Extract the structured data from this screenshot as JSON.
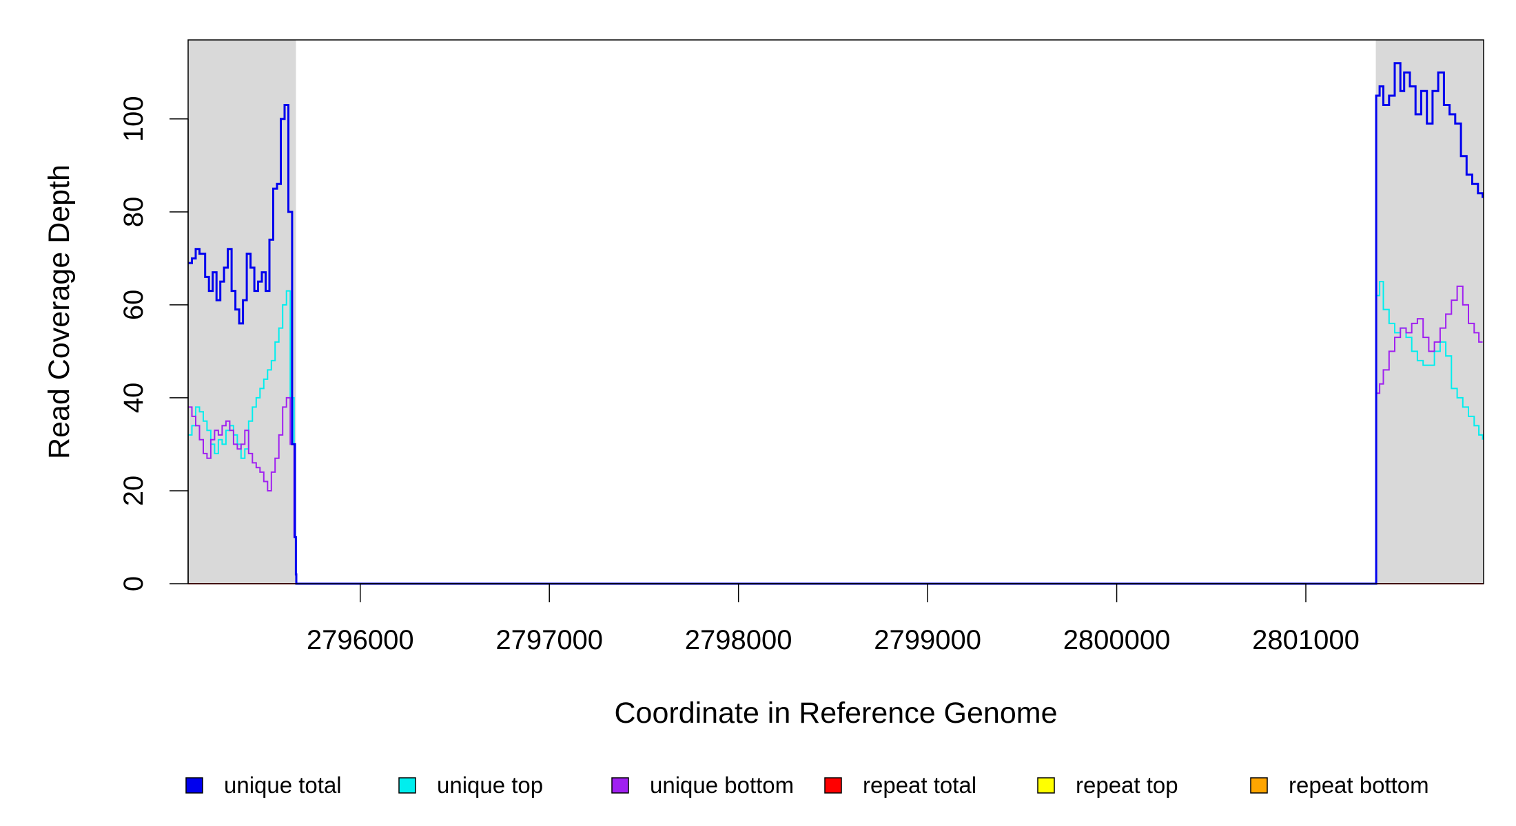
{
  "chart_data": {
    "type": "line",
    "title": "",
    "xlabel": "Coordinate in Reference Genome",
    "ylabel": "Read Coverage Depth",
    "xlim": [
      2795090,
      2801940
    ],
    "ylim": [
      0,
      117
    ],
    "x_ticks": [
      2796000,
      2797000,
      2798000,
      2799000,
      2800000,
      2801000
    ],
    "x_tick_labels": [
      "2796000",
      "2797000",
      "2798000",
      "2799000",
      "2800000",
      "2801000"
    ],
    "y_ticks": [
      0,
      20,
      40,
      60,
      80,
      100
    ],
    "y_tick_labels": [
      "0",
      "20",
      "40",
      "60",
      "80",
      "100"
    ],
    "shaded_regions": [
      {
        "from": 2795090,
        "to": 2795660,
        "color": "#d9d9d9"
      },
      {
        "from": 2801370,
        "to": 2801940,
        "color": "#d9d9d9"
      }
    ],
    "legend": {
      "placement": "bottom",
      "entries": [
        {
          "label": "unique total",
          "color": "#0000ee"
        },
        {
          "label": "unique top",
          "color": "#00eeee"
        },
        {
          "label": "unique bottom",
          "color": "#a020f0"
        },
        {
          "label": "repeat total",
          "color": "#ff0000"
        },
        {
          "label": "repeat top",
          "color": "#ffff00"
        },
        {
          "label": "repeat bottom",
          "color": "#ffa500"
        }
      ]
    },
    "series": [
      {
        "name": "unique total",
        "color": "#0000ee",
        "x": [
          2795090,
          2795110,
          2795130,
          2795150,
          2795180,
          2795200,
          2795220,
          2795240,
          2795260,
          2795280,
          2795300,
          2795320,
          2795340,
          2795360,
          2795380,
          2795400,
          2795420,
          2795440,
          2795460,
          2795480,
          2795500,
          2795520,
          2795540,
          2795560,
          2795580,
          2795600,
          2795620,
          2795640,
          2795655,
          2795660,
          2795662,
          2801370,
          2801372,
          2801390,
          2801410,
          2801440,
          2801470,
          2801500,
          2801520,
          2801550,
          2801580,
          2801610,
          2801640,
          2801670,
          2801700,
          2801730,
          2801760,
          2801790,
          2801820,
          2801850,
          2801880,
          2801910,
          2801935
        ],
        "y": [
          69,
          70,
          72,
          71,
          66,
          63,
          67,
          61,
          65,
          68,
          72,
          63,
          59,
          56,
          61,
          71,
          68,
          63,
          65,
          67,
          63,
          74,
          85,
          86,
          100,
          103,
          80,
          30,
          10,
          2,
          0,
          0,
          105,
          107,
          103,
          105,
          112,
          106,
          110,
          107,
          101,
          106,
          99,
          106,
          110,
          103,
          101,
          99,
          92,
          88,
          86,
          84,
          83
        ]
      },
      {
        "name": "unique top",
        "color": "#00eeee",
        "x": [
          2795090,
          2795110,
          2795130,
          2795150,
          2795170,
          2795190,
          2795210,
          2795230,
          2795250,
          2795270,
          2795290,
          2795310,
          2795330,
          2795350,
          2795370,
          2795390,
          2795410,
          2795430,
          2795450,
          2795470,
          2795490,
          2795510,
          2795530,
          2795550,
          2795570,
          2795590,
          2795610,
          2795630,
          2795650,
          2795660,
          2795662,
          2801370,
          2801372,
          2801390,
          2801410,
          2801440,
          2801470,
          2801500,
          2801530,
          2801560,
          2801590,
          2801620,
          2801650,
          2801680,
          2801710,
          2801740,
          2801770,
          2801800,
          2801830,
          2801860,
          2801890,
          2801915,
          2801935
        ],
        "y": [
          32,
          34,
          38,
          37,
          35,
          33,
          30,
          28,
          31,
          30,
          33,
          34,
          32,
          30,
          27,
          29,
          35,
          38,
          40,
          42,
          44,
          46,
          48,
          52,
          55,
          60,
          63,
          40,
          10,
          2,
          0,
          0,
          62,
          65,
          59,
          56,
          54,
          55,
          53,
          50,
          48,
          47,
          47,
          50,
          52,
          49,
          42,
          40,
          38,
          36,
          34,
          32,
          31
        ]
      },
      {
        "name": "unique bottom",
        "color": "#a020f0",
        "x": [
          2795090,
          2795110,
          2795130,
          2795150,
          2795170,
          2795190,
          2795210,
          2795230,
          2795250,
          2795270,
          2795290,
          2795310,
          2795330,
          2795350,
          2795370,
          2795390,
          2795410,
          2795430,
          2795450,
          2795470,
          2795490,
          2795510,
          2795530,
          2795550,
          2795570,
          2795590,
          2795610,
          2795630,
          2795650,
          2795660,
          2795662,
          2801370,
          2801372,
          2801390,
          2801410,
          2801440,
          2801470,
          2801500,
          2801530,
          2801560,
          2801590,
          2801620,
          2801650,
          2801680,
          2801710,
          2801740,
          2801770,
          2801800,
          2801830,
          2801860,
          2801890,
          2801915,
          2801935
        ],
        "y": [
          38,
          36,
          34,
          31,
          28,
          27,
          31,
          33,
          32,
          34,
          35,
          33,
          30,
          29,
          30,
          33,
          28,
          26,
          25,
          24,
          22,
          20,
          24,
          27,
          32,
          38,
          40,
          30,
          10,
          2,
          0,
          0,
          41,
          43,
          46,
          50,
          53,
          55,
          54,
          56,
          57,
          53,
          50,
          52,
          55,
          58,
          61,
          64,
          60,
          56,
          54,
          52,
          52
        ]
      },
      {
        "name": "repeat total",
        "color": "#ff0000",
        "x": [
          2795090,
          2801940
        ],
        "y": [
          0,
          0
        ]
      },
      {
        "name": "repeat top",
        "color": "#ffff00",
        "x": [
          2795090,
          2801940
        ],
        "y": [
          0,
          0
        ]
      },
      {
        "name": "repeat bottom",
        "color": "#ffa500",
        "x": [
          2795090,
          2801940
        ],
        "y": [
          0,
          0
        ]
      }
    ]
  }
}
